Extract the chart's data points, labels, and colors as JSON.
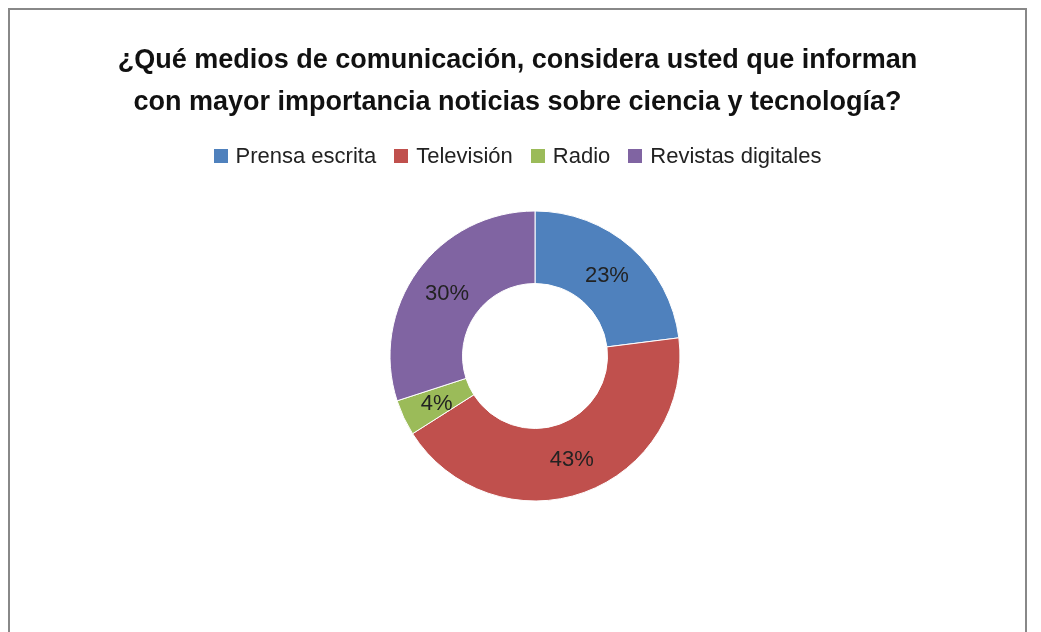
{
  "chart_data": {
    "type": "donut",
    "title": "¿Qué medios de comunicación,  considera usted que informan con mayor importancia noticias sobre ciencia y tecnología?",
    "categories": [
      "Prensa escrita",
      "Televisión",
      "Radio",
      "Revistas digitales"
    ],
    "values": [
      23,
      43,
      4,
      30
    ],
    "value_labels": [
      "23%",
      "43%",
      "4%",
      "30%"
    ],
    "colors": [
      "#4f81bd",
      "#c0504d",
      "#9bbb59",
      "#8064a2"
    ],
    "legend": "top"
  }
}
